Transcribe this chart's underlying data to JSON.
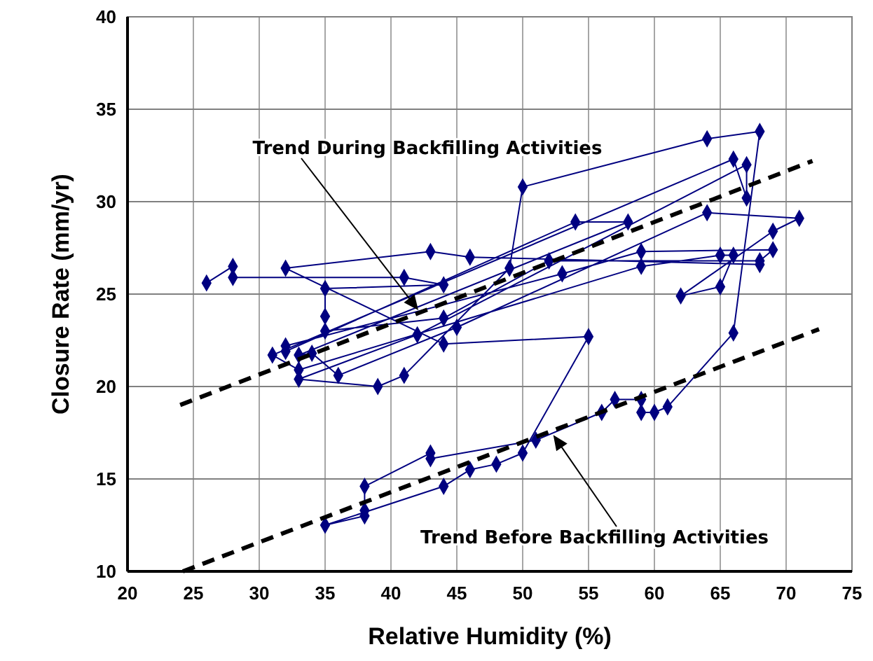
{
  "chart_data": {
    "type": "line",
    "xlabel": "Relative Humidity (%)",
    "ylabel": "Closure Rate (mm/yr)",
    "xlim": [
      20,
      75
    ],
    "xticks": [
      20,
      25,
      30,
      35,
      40,
      45,
      50,
      55,
      60,
      65,
      70,
      75
    ],
    "ylim": [
      10,
      40
    ],
    "yticks": [
      10,
      15,
      20,
      25,
      30,
      35,
      40
    ],
    "grid": true,
    "series": [
      {
        "color": "#000080",
        "marker": "diamond",
        "line_style": "solid",
        "x": [
          26,
          28,
          28,
          41,
          44,
          35,
          35,
          35,
          44,
          52,
          68,
          69,
          59,
          53,
          32,
          32,
          54,
          58,
          33,
          34,
          36,
          45,
          64,
          71,
          69,
          62,
          65,
          66,
          65,
          59,
          33,
          31,
          66,
          67,
          67,
          42,
          33,
          39,
          41,
          49,
          50,
          64,
          68,
          66,
          61,
          60,
          59,
          59,
          57,
          56,
          51,
          43,
          43,
          38,
          38,
          38,
          35,
          44,
          46,
          48,
          50,
          55,
          44,
          32,
          43,
          46,
          68
        ],
        "values": [
          25.6,
          26.5,
          25.9,
          25.9,
          25.5,
          25.3,
          23.8,
          23,
          23.7,
          26.8,
          26.8,
          27.4,
          27.3,
          26.1,
          22.2,
          21.9,
          28.9,
          28.9,
          21.7,
          21.8,
          20.6,
          23.2,
          29.4,
          29.1,
          28.4,
          24.9,
          25.4,
          27.1,
          27.1,
          26.5,
          20.9,
          21.7,
          32.3,
          30.2,
          32,
          22.8,
          20.4,
          20,
          20.6,
          26.4,
          30.8,
          33.4,
          33.8,
          22.9,
          18.9,
          18.6,
          18.6,
          19.3,
          19.3,
          18.6,
          17.1,
          16.1,
          16.4,
          14.6,
          13.3,
          13,
          12.5,
          14.6,
          15.5,
          15.8,
          16.4,
          22.7,
          22.3,
          26.4,
          27.3,
          27,
          26.6
        ]
      },
      {
        "color": "#000000",
        "marker": "none",
        "line_style": "dashed",
        "x": [
          24,
          72
        ],
        "values": [
          19,
          32.2
        ]
      },
      {
        "color": "#000000",
        "marker": "none",
        "line_style": "dashed",
        "x": [
          24.2,
          72.5
        ],
        "values": [
          10,
          23.1
        ]
      }
    ],
    "annotations": [
      {
        "text": "Trend During Backfilling Activities",
        "x": 42,
        "y": 24.2
      },
      {
        "text": "Trend Before Backfilling Activities",
        "x": 52.4,
        "y": 17.3
      }
    ]
  }
}
